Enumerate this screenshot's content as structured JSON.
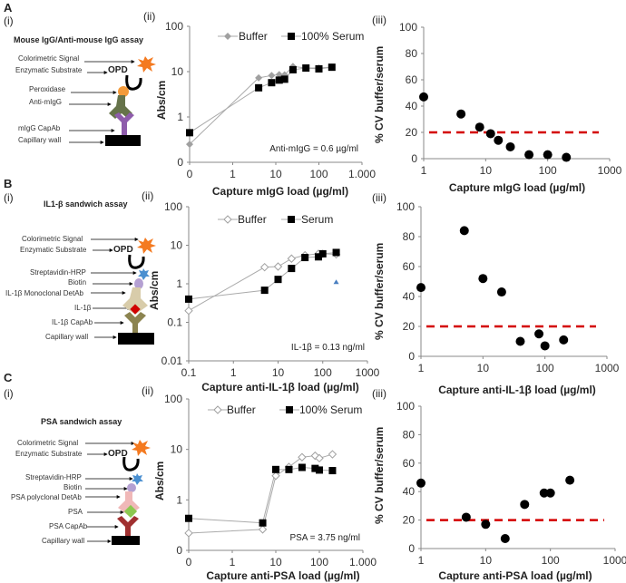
{
  "panels": {
    "A": {
      "label": "A",
      "i": "(i)",
      "ii": "(ii)",
      "iii": "(iii)",
      "diagram": {
        "title": "Mouse IgG/Anti-mouse IgG assay",
        "labels": [
          "Colorimetric  Signal",
          "Enzymatic Substrate",
          "Peroxidase",
          "Anti-mIgG",
          "mIgG CapAb",
          "Capillary wall"
        ],
        "opd": "OPD"
      }
    },
    "B": {
      "label": "B",
      "i": "(i)",
      "ii": "(ii)",
      "iii": "(iii)",
      "diagram": {
        "title": "IL1-β sandwich assay",
        "labels": [
          "Colorimetric  Signal",
          "Enzymatic Substrate",
          "Streptavidin-HRP",
          "Biotin",
          "IL-1β Monoclonal DetAb",
          "IL-1β",
          "IL-1β CapAb",
          "Capillary wall"
        ],
        "opd": "OPD"
      }
    },
    "C": {
      "label": "C",
      "i": "(i)",
      "ii": "(ii)",
      "iii": "(iii)",
      "diagram": {
        "title": "PSA sandwich assay",
        "labels": [
          "Colorimetric  Signal",
          "Enzymatic Substrate",
          "Streptavidin-HRP",
          "Biotin",
          "PSA polyclonal DetAb",
          "PSA",
          "PSA CapAb",
          "Capillary wall"
        ],
        "opd": "OPD"
      }
    }
  },
  "colors": {
    "buffer": "#a0a0a0",
    "serum": "#000000",
    "threshold": "#d40000",
    "extra": "#4a7fc0"
  },
  "chart_data": [
    {
      "id": "A-ii",
      "type": "line",
      "xscale": "log",
      "yscale": "log",
      "xlabel": "Capture mIgG  load (µg/ml)",
      "ylabel": "Abs/cm",
      "xticks": [
        0.1,
        1,
        10,
        100,
        1000
      ],
      "xtick_labels": [
        "0",
        "1",
        "10",
        "100",
        "1.000"
      ],
      "yticks": [
        0.1,
        1,
        10,
        100
      ],
      "ytick_labels": [
        "0",
        "1",
        "10",
        "100"
      ],
      "xlim": [
        0.1,
        1000
      ],
      "ylim": [
        0.1,
        100
      ],
      "legend": "top",
      "annotation": "Anti-mIgG = 0.6 µg/ml",
      "x": [
        0.1,
        4,
        8,
        12,
        16,
        25,
        50,
        100,
        200
      ],
      "series": [
        {
          "name": "Buffer",
          "marker": "diamond",
          "values": [
            0.25,
            7.3,
            8.2,
            8.6,
            8.5,
            13,
            12,
            12,
            12.5
          ]
        },
        {
          "name": "100% Serum",
          "marker": "square",
          "values": [
            0.45,
            4.4,
            5.7,
            6.5,
            6.8,
            11,
            12,
            11.5,
            12.5
          ]
        }
      ]
    },
    {
      "id": "A-iii",
      "type": "scatter",
      "xscale": "log",
      "yscale": "linear",
      "xlabel": "Capture mIgG load (µg/ml)",
      "ylabel": "% CV buffer/serum",
      "xticks": [
        1,
        10,
        100,
        1000
      ],
      "xtick_labels": [
        "1",
        "10",
        "100",
        "1000"
      ],
      "yticks": [
        0,
        20,
        40,
        60,
        80,
        100
      ],
      "ytick_labels": [
        "0",
        "20",
        "40",
        "60",
        "80",
        "100"
      ],
      "xlim": [
        1,
        1000
      ],
      "ylim": [
        0,
        100
      ],
      "threshold": 20,
      "x": [
        1,
        4,
        8,
        12,
        16,
        25,
        50,
        100,
        200
      ],
      "values": [
        47,
        34,
        24,
        19,
        14,
        9,
        3,
        3,
        1
      ]
    },
    {
      "id": "B-ii",
      "type": "line",
      "xscale": "log",
      "yscale": "log",
      "xlabel": "Capture anti-IL-1β load  (µg/ml)",
      "ylabel": "Abs/cm",
      "xticks": [
        0.1,
        1,
        10,
        100,
        1000
      ],
      "xtick_labels": [
        "0.1",
        "1",
        "10",
        "100",
        "1000"
      ],
      "yticks": [
        0.01,
        0.1,
        1,
        10,
        100
      ],
      "ytick_labels": [
        "0.01",
        "0.1",
        "1",
        "10",
        "100"
      ],
      "xlim": [
        0.1,
        1000
      ],
      "ylim": [
        0.01,
        100
      ],
      "legend": "top",
      "annotation": "IL-1β = 0.13 ng/ml",
      "x": [
        0.1,
        5,
        10,
        20,
        40,
        80,
        100,
        200
      ],
      "series": [
        {
          "name": "Buffer",
          "marker": "diamond-open",
          "values": [
            0.2,
            2.7,
            2.8,
            4.5,
            5.5,
            6,
            6,
            5.8
          ]
        },
        {
          "name": "Serum",
          "marker": "square",
          "values": [
            0.4,
            0.68,
            1.3,
            2.5,
            4.8,
            5,
            6,
            6.5
          ]
        }
      ],
      "extra_points": [
        {
          "x": 200,
          "y": 1.1
        }
      ]
    },
    {
      "id": "B-iii",
      "type": "scatter",
      "xscale": "log",
      "yscale": "linear",
      "xlabel": "Capture anti-IL-1β load (µg/ml)",
      "ylabel": "% CV buffer/serum",
      "xticks": [
        1,
        10,
        100,
        1000
      ],
      "xtick_labels": [
        "1",
        "10",
        "100",
        "1000"
      ],
      "yticks": [
        0,
        20,
        40,
        60,
        80,
        100
      ],
      "ytick_labels": [
        "0",
        "20",
        "40",
        "60",
        "80",
        "100"
      ],
      "xlim": [
        1,
        1000
      ],
      "ylim": [
        0,
        100
      ],
      "threshold": 20,
      "x": [
        1,
        5,
        10,
        20,
        40,
        80,
        100,
        200
      ],
      "values": [
        46,
        84,
        52,
        43,
        10,
        15,
        7,
        11
      ]
    },
    {
      "id": "C-ii",
      "type": "line",
      "xscale": "log",
      "yscale": "log",
      "xlabel": "Capture anti-PSA load  (µg/ml)",
      "ylabel": "Abs/cm",
      "xticks": [
        0.1,
        1,
        10,
        100,
        1000
      ],
      "xtick_labels": [
        "0",
        "1",
        "10",
        "100",
        "1.000"
      ],
      "yticks": [
        0.1,
        1,
        10,
        100
      ],
      "ytick_labels": [
        "0",
        "1",
        "10",
        "100"
      ],
      "xlim": [
        0.1,
        1000
      ],
      "ylim": [
        0.1,
        100
      ],
      "legend": "top",
      "annotation": "PSA = 3.75 ng/ml",
      "x": [
        0.1,
        5,
        10,
        20,
        40,
        80,
        100,
        200
      ],
      "series": [
        {
          "name": "Buffer",
          "marker": "diamond-open",
          "values": [
            0.22,
            0.26,
            3.0,
            4.5,
            7,
            7.5,
            6.7,
            8
          ]
        },
        {
          "name": "100% Serum",
          "marker": "square",
          "values": [
            0.43,
            0.35,
            4.0,
            4.0,
            4.4,
            4.2,
            3.9,
            3.8
          ]
        }
      ]
    },
    {
      "id": "C-iii",
      "type": "scatter",
      "xscale": "log",
      "yscale": "linear",
      "xlabel": "Capture anti-PSA load (µg/ml)",
      "ylabel": "% CV buffer/serum",
      "xticks": [
        1,
        10,
        100,
        1000
      ],
      "xtick_labels": [
        "1",
        "10",
        "100",
        "1000"
      ],
      "yticks": [
        0,
        20,
        40,
        60,
        80,
        100
      ],
      "ytick_labels": [
        "0",
        "20",
        "40",
        "60",
        "80",
        "100"
      ],
      "xlim": [
        1,
        1000
      ],
      "ylim": [
        0,
        100
      ],
      "threshold": 20,
      "x": [
        1,
        5,
        10,
        20,
        40,
        80,
        100,
        200
      ],
      "values": [
        46,
        22,
        17,
        7,
        31,
        39,
        39,
        48
      ]
    }
  ]
}
